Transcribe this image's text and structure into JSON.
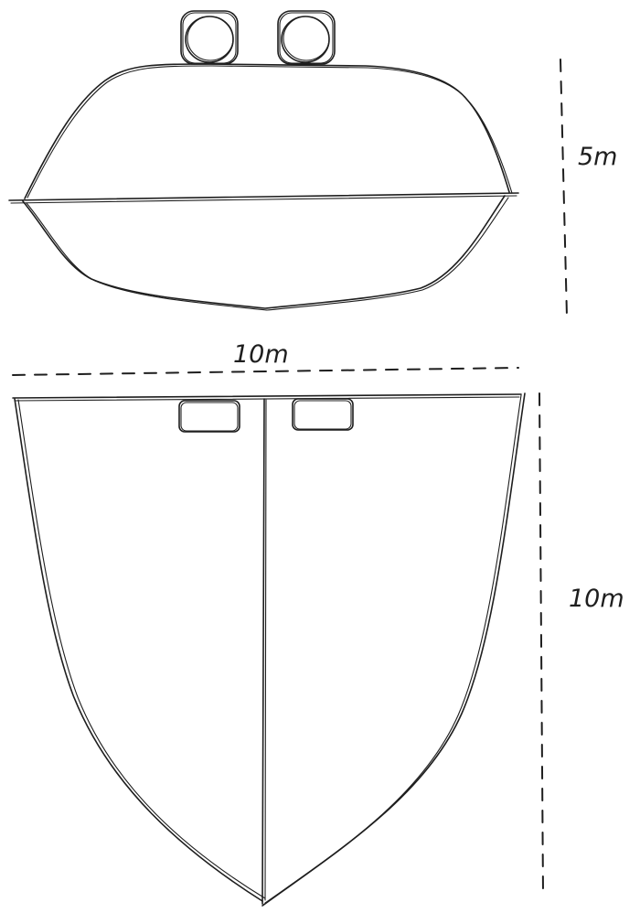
{
  "diagram": {
    "side_view": {
      "height_label": "5m"
    },
    "top_view": {
      "width_label": "10m",
      "length_label": "10m"
    },
    "colors": {
      "stroke": "#1e1e1e",
      "background": "#ffffff"
    }
  }
}
